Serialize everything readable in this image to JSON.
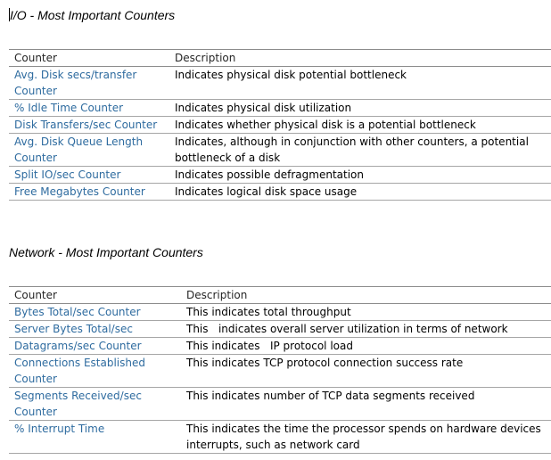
{
  "io_section": {
    "title": "I/O - Most Important Counters",
    "header": {
      "counter": "Counter",
      "description": "Description"
    },
    "rows": [
      {
        "counter": "Avg. Disk secs/transfer Counter",
        "description": "Indicates physical disk potential bottleneck"
      },
      {
        "counter": "% Idle Time Counter",
        "description": "Indicates physical disk utilization"
      },
      {
        "counter": "Disk Transfers/sec Counter",
        "description": "Indicates whether physical disk is a potential bottleneck"
      },
      {
        "counter": "Avg. Disk Queue Length Counter",
        "description": "Indicates, although in conjunction with other counters, a potential bottleneck of a disk"
      },
      {
        "counter": "Split IO/sec Counter",
        "description": "Indicates possible defragmentation"
      },
      {
        "counter": "Free Megabytes Counter",
        "description": "Indicates logical disk space usage"
      }
    ]
  },
  "network_section": {
    "title": "Network - Most Important Counters",
    "header": {
      "counter": "Counter",
      "description": "Description"
    },
    "rows": [
      {
        "counter": "Bytes Total/sec Counter",
        "description": "This indicates total throughput"
      },
      {
        "counter": "Server Bytes Total/sec",
        "description": "This   indicates overall server utilization in terms of network"
      },
      {
        "counter": "Datagrams/sec Counter",
        "description": "This indicates   IP protocol load"
      },
      {
        "counter": "Connections Established Counter",
        "description": "This indicates TCP protocol connection success rate"
      },
      {
        "counter": "Segments  Received/sec Counter",
        "description": "This indicates number of TCP data segments received"
      },
      {
        "counter": "% Interrupt Time",
        "description": "This indicates the time the processor spends on hardware devices interrupts, such as network card"
      }
    ]
  },
  "colors": {
    "counter_text": "#2e6b9f",
    "rule_lines": "#a6a6a6"
  }
}
